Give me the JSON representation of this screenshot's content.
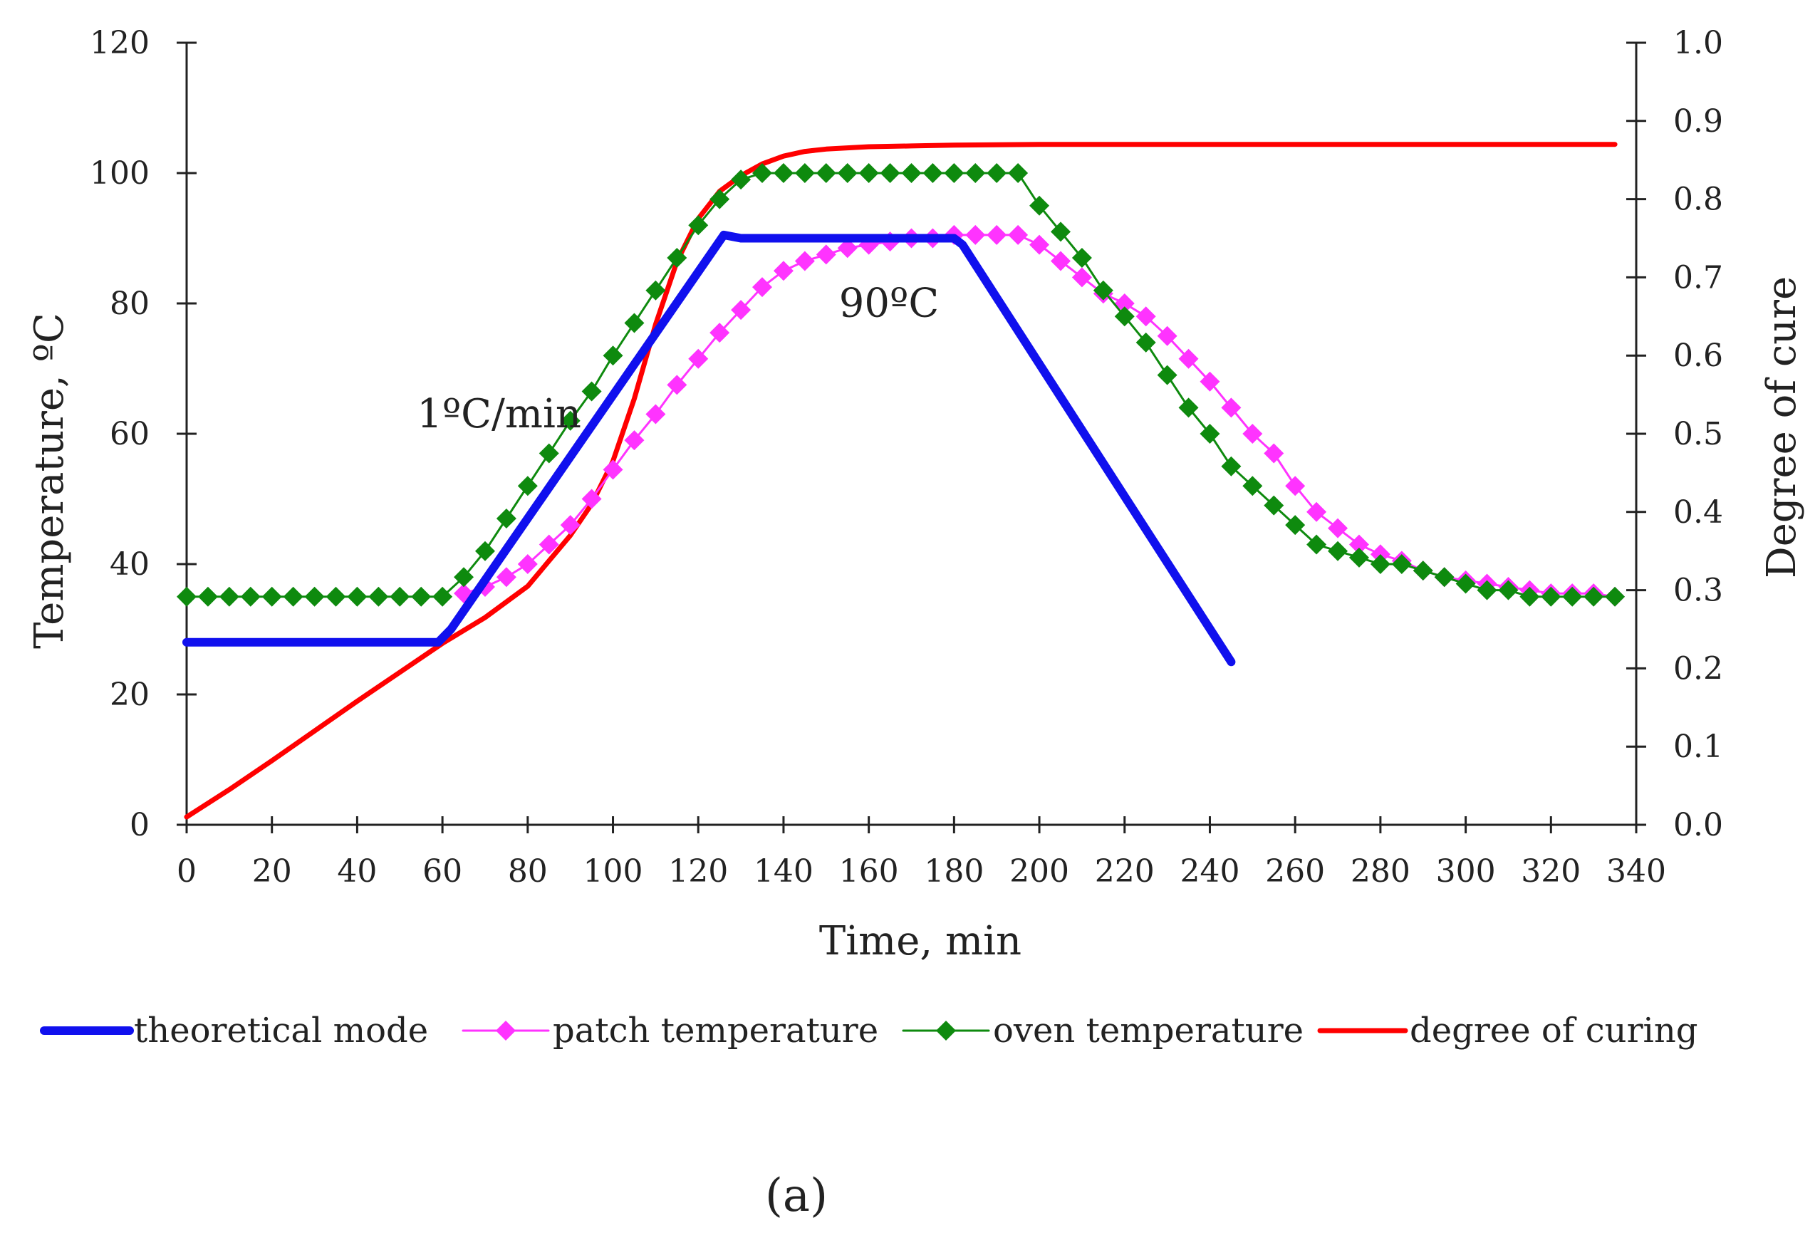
{
  "chart_data": {
    "type": "line",
    "xlabel": "Time, min",
    "ylabel": "Temperature, ºC",
    "y2label": "Degree of cure",
    "xlim": [
      0,
      340
    ],
    "ylim": [
      0,
      120
    ],
    "y2lim": [
      0,
      1.0
    ],
    "xticks": [
      "0",
      "20",
      "40",
      "60",
      "80",
      "100",
      "120",
      "140",
      "160",
      "180",
      "200",
      "220",
      "240",
      "260",
      "280",
      "300",
      "320",
      "340"
    ],
    "yticks": [
      "0",
      "20",
      "40",
      "60",
      "80",
      "100",
      "120"
    ],
    "y2ticks": [
      "0.0",
      "0.1",
      "0.2",
      "0.3",
      "0.4",
      "0.5",
      "0.6",
      "0.7",
      "0.8",
      "0.9",
      "1.0"
    ],
    "grid": false,
    "legend_position": "bottom",
    "annotations": [
      {
        "text": "1ºC/min",
        "x": 54,
        "y": 61
      },
      {
        "text": "90ºC",
        "x": 153,
        "y": 78
      }
    ],
    "panel_label": "(a)",
    "series": [
      {
        "name": "theoretical mode",
        "color": "#1010ee",
        "axis": "left",
        "marker": "none",
        "points": [
          [
            0,
            28
          ],
          [
            59,
            28
          ],
          [
            62,
            30
          ],
          [
            126,
            90.5
          ],
          [
            130,
            90
          ],
          [
            180,
            90
          ],
          [
            182,
            89
          ],
          [
            245,
            25
          ]
        ]
      },
      {
        "name": "patch temperature",
        "color": "#ff33ff",
        "axis": "left",
        "marker": "diamond",
        "points": [
          [
            65,
            35.5
          ],
          [
            70,
            36.5
          ],
          [
            75,
            38
          ],
          [
            80,
            40
          ],
          [
            85,
            43
          ],
          [
            90,
            46
          ],
          [
            95,
            50
          ],
          [
            100,
            54.5
          ],
          [
            105,
            59
          ],
          [
            110,
            63
          ],
          [
            115,
            67.5
          ],
          [
            120,
            71.5
          ],
          [
            125,
            75.5
          ],
          [
            130,
            79
          ],
          [
            135,
            82.5
          ],
          [
            140,
            85
          ],
          [
            145,
            86.5
          ],
          [
            150,
            87.5
          ],
          [
            155,
            88.5
          ],
          [
            160,
            89
          ],
          [
            165,
            89.5
          ],
          [
            170,
            90
          ],
          [
            175,
            90
          ],
          [
            180,
            90.5
          ],
          [
            185,
            90.5
          ],
          [
            190,
            90.5
          ],
          [
            195,
            90.5
          ],
          [
            200,
            89
          ],
          [
            205,
            86.5
          ],
          [
            210,
            84
          ],
          [
            215,
            81.5
          ],
          [
            220,
            80
          ],
          [
            225,
            78
          ],
          [
            230,
            75
          ],
          [
            235,
            71.5
          ],
          [
            240,
            68
          ],
          [
            245,
            64
          ],
          [
            250,
            60
          ],
          [
            255,
            57
          ],
          [
            260,
            52
          ],
          [
            265,
            48
          ],
          [
            270,
            45.5
          ],
          [
            275,
            43
          ],
          [
            280,
            41.5
          ],
          [
            285,
            40.5
          ],
          [
            290,
            39
          ],
          [
            295,
            38
          ],
          [
            300,
            37.5
          ],
          [
            305,
            37
          ],
          [
            310,
            36.5
          ],
          [
            315,
            36
          ],
          [
            320,
            35.5
          ],
          [
            325,
            35.5
          ],
          [
            330,
            35.5
          ],
          [
            335,
            35
          ]
        ]
      },
      {
        "name": "oven temperature",
        "color": "#0e8a0e",
        "axis": "left",
        "marker": "diamond",
        "points": [
          [
            0,
            35
          ],
          [
            5,
            35
          ],
          [
            10,
            35
          ],
          [
            15,
            35
          ],
          [
            20,
            35
          ],
          [
            25,
            35
          ],
          [
            30,
            35
          ],
          [
            35,
            35
          ],
          [
            40,
            35
          ],
          [
            45,
            35
          ],
          [
            50,
            35
          ],
          [
            55,
            35
          ],
          [
            60,
            35
          ],
          [
            65,
            38
          ],
          [
            70,
            42
          ],
          [
            75,
            47
          ],
          [
            80,
            52
          ],
          [
            85,
            57
          ],
          [
            90,
            62
          ],
          [
            95,
            66.5
          ],
          [
            100,
            72
          ],
          [
            105,
            77
          ],
          [
            110,
            82
          ],
          [
            115,
            87
          ],
          [
            120,
            92
          ],
          [
            125,
            96
          ],
          [
            130,
            99
          ],
          [
            135,
            100
          ],
          [
            140,
            100
          ],
          [
            145,
            100
          ],
          [
            150,
            100
          ],
          [
            155,
            100
          ],
          [
            160,
            100
          ],
          [
            165,
            100
          ],
          [
            170,
            100
          ],
          [
            175,
            100
          ],
          [
            180,
            100
          ],
          [
            185,
            100
          ],
          [
            190,
            100
          ],
          [
            195,
            100
          ],
          [
            200,
            95
          ],
          [
            205,
            91
          ],
          [
            210,
            87
          ],
          [
            215,
            82
          ],
          [
            220,
            78
          ],
          [
            225,
            74
          ],
          [
            230,
            69
          ],
          [
            235,
            64
          ],
          [
            240,
            60
          ],
          [
            245,
            55
          ],
          [
            250,
            52
          ],
          [
            255,
            49
          ],
          [
            260,
            46
          ],
          [
            265,
            43
          ],
          [
            270,
            42
          ],
          [
            275,
            41
          ],
          [
            280,
            40
          ],
          [
            285,
            40
          ],
          [
            290,
            39
          ],
          [
            295,
            38
          ],
          [
            300,
            37
          ],
          [
            305,
            36
          ],
          [
            310,
            36
          ],
          [
            315,
            35
          ],
          [
            320,
            35
          ],
          [
            325,
            35
          ],
          [
            330,
            35
          ],
          [
            335,
            35
          ]
        ]
      },
      {
        "name": "degree of curing",
        "color": "#ff0000",
        "axis": "right",
        "marker": "none",
        "points": [
          [
            0,
            0.01
          ],
          [
            10,
            0.045
          ],
          [
            20,
            0.082
          ],
          [
            30,
            0.12
          ],
          [
            40,
            0.158
          ],
          [
            50,
            0.195
          ],
          [
            60,
            0.232
          ],
          [
            70,
            0.265
          ],
          [
            80,
            0.305
          ],
          [
            90,
            0.37
          ],
          [
            95,
            0.41
          ],
          [
            100,
            0.465
          ],
          [
            105,
            0.545
          ],
          [
            110,
            0.64
          ],
          [
            115,
            0.72
          ],
          [
            120,
            0.775
          ],
          [
            125,
            0.81
          ],
          [
            130,
            0.83
          ],
          [
            135,
            0.845
          ],
          [
            140,
            0.855
          ],
          [
            145,
            0.861
          ],
          [
            150,
            0.864
          ],
          [
            160,
            0.867
          ],
          [
            170,
            0.868
          ],
          [
            180,
            0.869
          ],
          [
            200,
            0.87
          ],
          [
            250,
            0.87
          ],
          [
            300,
            0.87
          ],
          [
            335,
            0.87
          ]
        ]
      }
    ]
  }
}
